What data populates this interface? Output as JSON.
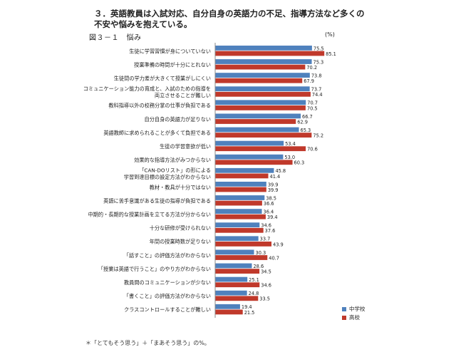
{
  "page": {
    "heading": "３．英語教員は入試対応、自分自身の英語力の不足、指導方法など多くの不安や悩みを抱えている。",
    "figure_label": "図３－１　悩み",
    "unit": "(%)",
    "note": "＊「とてもそう思う」＋「まあそう思う」の%。"
  },
  "colors": {
    "junior_high": "#4f81bd",
    "high_school": "#c0392b",
    "axis": "#888888"
  },
  "chart_data": {
    "type": "bar",
    "orientation": "horizontal",
    "categories": [
      [
        "生徒に学習習慣が身についていない"
      ],
      [
        "授業準備の時間が十分にとれない"
      ],
      [
        "生徒間の学力差が大きくて授業がしにくい"
      ],
      [
        "コミュニケーション能力の育成と、入試のための指導を",
        "両立させることが難しい"
      ],
      [
        "教科指導以外の校務分掌の仕事が負担である"
      ],
      [
        "自分自身の英語力が足りない"
      ],
      [
        "英語教師に求められることが多くて負担である"
      ],
      [
        "生徒の学習意欲が低い"
      ],
      [
        "効果的な指導方法がみつからない"
      ],
      [
        "「CAN-DOリスト」の形による",
        "学習到達目標の設定方法がわからない"
      ],
      [
        "教材・教具が十分ではない"
      ],
      [
        "英語に苦手意識がある生徒の指導が負担である"
      ],
      [
        "中期的・長期的な授業計画を立てる方法が分からない"
      ],
      [
        "十分な研修が受けられない"
      ],
      [
        "年間の授業時数が足りない"
      ],
      [
        "「話すこと」の評価方法がわからない"
      ],
      [
        "「授業は英語で行うこと」のやり方がわからない"
      ],
      [
        "教員間のコミュニケーションが少ない"
      ],
      [
        "「書くこと」の評価方法がわからない"
      ],
      [
        "クラスコントロールすることが難しい"
      ]
    ],
    "series": [
      {
        "name": "中学校",
        "values": [
          75.5,
          75.3,
          73.8,
          73.7,
          70.7,
          66.7,
          65.3,
          53.4,
          53.0,
          45.8,
          39.9,
          38.5,
          36.4,
          34.6,
          33.7,
          30.3,
          28.6,
          25.1,
          24.8,
          19.4
        ]
      },
      {
        "name": "高校",
        "values": [
          85.1,
          70.2,
          67.9,
          74.4,
          70.5,
          62.9,
          75.2,
          70.6,
          60.3,
          41.4,
          39.9,
          36.6,
          39.4,
          37.6,
          43.9,
          40.7,
          34.5,
          34.6,
          33.5,
          21.5
        ]
      }
    ],
    "xlim": [
      0,
      100
    ],
    "legend_position": "bottom-right",
    "grid": false,
    "data_labels": true
  }
}
